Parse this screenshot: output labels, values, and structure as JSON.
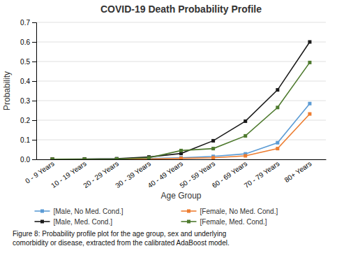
{
  "chart_data": {
    "type": "line",
    "title": "COVID-19 Death Probability Profile",
    "x_label": "Age Group",
    "y_label": "Probability",
    "categories": [
      "0 - 9 Years",
      "10 - 19 Years",
      "20 - 29 Years",
      "30 - 39 Years",
      "40 - 49 Years",
      "50 - 59 Years",
      "60 - 69 Years",
      "70 - 79 Years",
      "80+ Years"
    ],
    "series": [
      {
        "name": "[Male, No Med. Cond.]",
        "color": "#5b9bd5",
        "values": [
          0.001,
          0.001,
          0.002,
          0.004,
          0.008,
          0.015,
          0.028,
          0.085,
          0.285
        ]
      },
      {
        "name": "[Female, No Med. Cond.]",
        "color": "#ed7d31",
        "values": [
          0.001,
          0.001,
          0.001,
          0.002,
          0.005,
          0.008,
          0.018,
          0.055,
          0.232
        ]
      },
      {
        "name": "[Male, Med. Cond.]",
        "color": "#1a1a1a",
        "values": [
          0.001,
          0.002,
          0.003,
          0.012,
          0.03,
          0.095,
          0.195,
          0.355,
          0.6
        ]
      },
      {
        "name": "[Female, Med. Cond.]",
        "color": "#4e7a2e",
        "values": [
          0.001,
          0.001,
          0.002,
          0.008,
          0.045,
          0.055,
          0.12,
          0.265,
          0.495
        ]
      }
    ],
    "ylim": [
      0,
      0.7
    ],
    "yticks": [
      {
        "value": 0.0,
        "label": "0.0"
      },
      0.1,
      0.2,
      0.3,
      0.4,
      0.5,
      0.6,
      0.7
    ],
    "grid": true,
    "legend": "bottom",
    "marker": "square",
    "line_style": "solid",
    "caption": "Figure 8: Probability profile plot for the age group, sex and underlying\ncomorbidity or disease, extracted from the calibrated AdaBoost model."
  }
}
